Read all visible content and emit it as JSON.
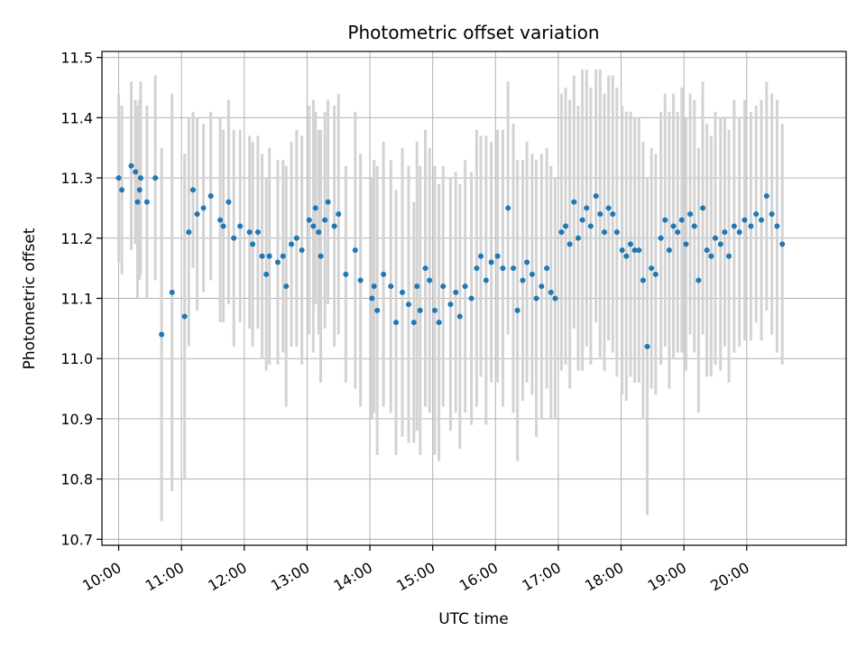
{
  "chart_data": {
    "type": "scatter",
    "title": "Photometric offset variation",
    "xlabel": "UTC time",
    "ylabel": "Photometric offset",
    "xlim": [
      "09:44",
      "21:35"
    ],
    "ylim": [
      10.69,
      11.51
    ],
    "x_ticks": [
      "10:00",
      "11:00",
      "12:00",
      "13:00",
      "14:00",
      "15:00",
      "16:00",
      "17:00",
      "18:00",
      "19:00",
      "20:00"
    ],
    "y_ticks": [
      "10.7",
      "10.8",
      "10.9",
      "11.0",
      "11.1",
      "11.2",
      "11.3",
      "11.4",
      "11.5"
    ],
    "grid": true,
    "colors": {
      "point": "#1f77b4",
      "error_bar": "#d3d3d3",
      "grid": "#b0b0b0"
    },
    "series": [
      {
        "x": [
          "10:00",
          "10:03",
          "10:12",
          "10:16",
          "10:18",
          "10:20",
          "10:21",
          "10:27",
          "10:35",
          "10:41",
          "10:51",
          "11:03",
          "11:07",
          "11:11",
          "11:15",
          "11:21",
          "11:28",
          "11:37",
          "11:40",
          "11:45",
          "11:50",
          "11:56",
          "12:05",
          "12:08",
          "12:13",
          "12:17",
          "12:21",
          "12:24",
          "12:32",
          "12:37",
          "12:40",
          "12:45",
          "12:50",
          "12:55",
          "13:02",
          "13:06",
          "13:08",
          "13:11",
          "13:13",
          "13:17",
          "13:20",
          "13:26",
          "13:30",
          "13:37",
          "13:46",
          "13:51",
          "14:02",
          "14:04",
          "14:07",
          "14:13",
          "14:20",
          "14:25",
          "14:31",
          "14:37",
          "14:42",
          "14:45",
          "14:48",
          "14:53",
          "14:57",
          "15:02",
          "15:06",
          "15:10",
          "15:17",
          "15:22",
          "15:26",
          "15:31",
          "15:37",
          "15:42",
          "15:46",
          "15:51",
          "15:56",
          "16:02",
          "16:07",
          "16:12",
          "16:17",
          "16:21",
          "16:26",
          "16:30",
          "16:35",
          "16:39",
          "16:44",
          "16:49",
          "16:53",
          "16:57",
          "17:03",
          "17:07",
          "17:11",
          "17:15",
          "17:19",
          "17:23",
          "17:27",
          "17:31",
          "17:36",
          "17:40",
          "17:44",
          "17:48",
          "17:52",
          "17:56",
          "18:01",
          "18:05",
          "18:09",
          "18:13",
          "18:17",
          "18:21",
          "18:25",
          "18:29",
          "18:33",
          "18:38",
          "18:42",
          "18:46",
          "18:50",
          "18:54",
          "18:58",
          "19:02",
          "19:06",
          "19:10",
          "19:14",
          "19:18",
          "19:22",
          "19:26",
          "19:30",
          "19:35",
          "19:39",
          "19:43",
          "19:48",
          "19:53",
          "19:58",
          "20:04",
          "20:09",
          "20:14",
          "20:19",
          "20:24",
          "20:29",
          "20:34"
        ],
        "y": [
          11.3,
          11.28,
          11.32,
          11.31,
          11.26,
          11.28,
          11.3,
          11.26,
          11.3,
          11.04,
          11.11,
          11.07,
          11.21,
          11.28,
          11.24,
          11.25,
          11.27,
          11.23,
          11.22,
          11.26,
          11.2,
          11.22,
          11.21,
          11.19,
          11.21,
          11.17,
          11.14,
          11.17,
          11.16,
          11.17,
          11.12,
          11.19,
          11.2,
          11.18,
          11.23,
          11.22,
          11.25,
          11.21,
          11.17,
          11.23,
          11.26,
          11.22,
          11.24,
          11.14,
          11.18,
          11.13,
          11.1,
          11.12,
          11.08,
          11.14,
          11.12,
          11.06,
          11.11,
          11.09,
          11.06,
          11.12,
          11.08,
          11.15,
          11.13,
          11.08,
          11.06,
          11.12,
          11.09,
          11.11,
          11.07,
          11.12,
          11.1,
          11.15,
          11.17,
          11.13,
          11.16,
          11.17,
          11.15,
          11.25,
          11.15,
          11.08,
          11.13,
          11.16,
          11.14,
          11.1,
          11.12,
          11.15,
          11.11,
          11.1,
          11.21,
          11.22,
          11.19,
          11.26,
          11.2,
          11.23,
          11.25,
          11.22,
          11.27,
          11.24,
          11.21,
          11.25,
          11.24,
          11.21,
          11.18,
          11.17,
          11.19,
          11.18,
          11.18,
          11.13,
          11.02,
          11.15,
          11.14,
          11.2,
          11.23,
          11.18,
          11.22,
          11.21,
          11.23,
          11.19,
          11.24,
          11.22,
          11.13,
          11.25,
          11.18,
          11.17,
          11.2,
          11.19,
          11.21,
          11.17,
          11.22,
          11.21,
          11.23,
          11.22,
          11.24,
          11.23,
          11.27,
          11.24,
          11.22,
          11.19
        ],
        "yerr": [
          0.14,
          0.14,
          0.14,
          0.12,
          0.16,
          0.15,
          0.16,
          0.16,
          0.17,
          0.31,
          0.33,
          0.27,
          0.19,
          0.13,
          0.16,
          0.14,
          0.14,
          0.17,
          0.16,
          0.17,
          0.18,
          0.16,
          0.16,
          0.17,
          0.16,
          0.17,
          0.16,
          0.18,
          0.17,
          0.16,
          0.2,
          0.17,
          0.18,
          0.19,
          0.19,
          0.21,
          0.16,
          0.17,
          0.21,
          0.18,
          0.17,
          0.2,
          0.2,
          0.18,
          0.23,
          0.21,
          0.2,
          0.21,
          0.24,
          0.22,
          0.21,
          0.22,
          0.24,
          0.23,
          0.2,
          0.24,
          0.24,
          0.23,
          0.22,
          0.24,
          0.23,
          0.2,
          0.21,
          0.2,
          0.22,
          0.21,
          0.21,
          0.23,
          0.2,
          0.24,
          0.2,
          0.21,
          0.23,
          0.21,
          0.24,
          0.25,
          0.2,
          0.2,
          0.2,
          0.23,
          0.22,
          0.2,
          0.21,
          0.2,
          0.23,
          0.23,
          0.24,
          0.21,
          0.22,
          0.25,
          0.23,
          0.23,
          0.21,
          0.24,
          0.23,
          0.22,
          0.23,
          0.24,
          0.24,
          0.24,
          0.22,
          0.22,
          0.22,
          0.23,
          0.28,
          0.2,
          0.2,
          0.21,
          0.21,
          0.23,
          0.22,
          0.2,
          0.22,
          0.21,
          0.2,
          0.21,
          0.22,
          0.21,
          0.21,
          0.2,
          0.21,
          0.21,
          0.19,
          0.21,
          0.21,
          0.19,
          0.2,
          0.19,
          0.18,
          0.2,
          0.19,
          0.2,
          0.21,
          0.2
        ]
      }
    ]
  }
}
